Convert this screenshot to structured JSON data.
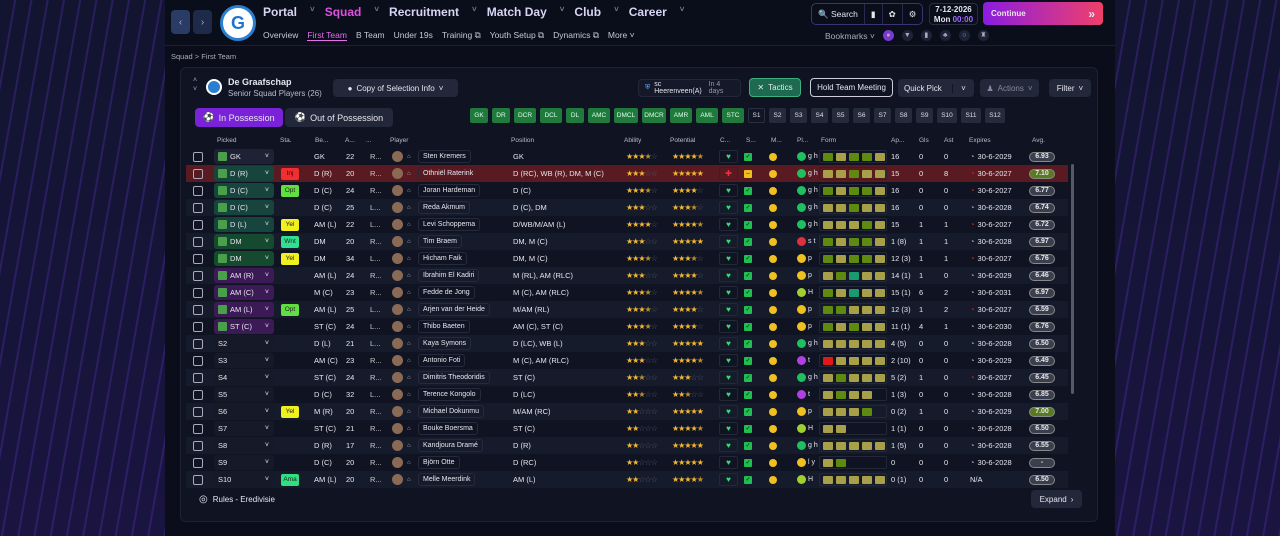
{
  "nav": {
    "main": [
      {
        "label": "Portal"
      },
      {
        "label": "Squad",
        "active": true
      },
      {
        "label": "Recruitment"
      },
      {
        "label": "Match Day"
      },
      {
        "label": "Club"
      },
      {
        "label": "Career"
      }
    ],
    "sub": [
      {
        "label": "Overview"
      },
      {
        "label": "First Team",
        "active": true
      },
      {
        "label": "B Team"
      },
      {
        "label": "Under 19s"
      },
      {
        "label": "Training ⧉"
      },
      {
        "label": "Youth Setup ⧉"
      },
      {
        "label": "Dynamics ⧉"
      },
      {
        "label": "More ˅"
      }
    ],
    "search": "Search",
    "date": "7-12-2026",
    "day": "Mon",
    "time": "00:00",
    "continue": "Continue",
    "bookmarks": "Bookmarks"
  },
  "breadcrumb": "Squad > First Team",
  "team": {
    "name": "De Graafschap",
    "subtitle": "Senior Squad Players (26)",
    "view": "Copy of Selection Info",
    "next_match": "sc Heerenveen(A)",
    "next_when": "In 4 days"
  },
  "toolbar": {
    "tactics": "Tactics",
    "meeting": "Hold Team Meeting",
    "quick_pick": "Quick Pick",
    "actions": "Actions",
    "filter": "Filter",
    "in_poss": "In Possession",
    "out_poss": "Out of Possession"
  },
  "positions": [
    "GK",
    "DR",
    "DCR",
    "DCL",
    "DL",
    "AMC",
    "DMCL",
    "DMCR",
    "AMR",
    "AML",
    "STC"
  ],
  "subs": [
    "S1",
    "S2",
    "S3",
    "S4",
    "S5",
    "S6",
    "S7",
    "S8",
    "S9",
    "S10",
    "S11",
    "S12"
  ],
  "columns": {
    "picked": "Picked",
    "sta": "Sta.",
    "best": "Be...",
    "age": "A...",
    "foot": "...",
    "player": "Player",
    "position": "Position",
    "ability": "Ability",
    "potential": "Potential",
    "cond": "C...",
    "sharp": "S...",
    "morale": "M...",
    "pl": "Pl...",
    "form": "Form",
    "apps": "Ap...",
    "gls": "Gls",
    "ast": "Ast",
    "expires": "Expires",
    "avg": "Avg."
  },
  "colors": {
    "green": "#5e8a10",
    "yellow": "#a8a048",
    "teal": "#1a9a70",
    "red": "#e01818"
  },
  "players": [
    {
      "picked": "GK",
      "grp": "gk",
      "sta": "",
      "best": "GK",
      "age": "22",
      "foot": "R...",
      "name": "Sten Kremers",
      "pos": "GK",
      "ab": 3.5,
      "po": 4.5,
      "form": "gyggy",
      "pl": "g",
      "plt": "g h",
      "apps": "16",
      "gls": "0",
      "ast": "0",
      "exp": "30-6-2029",
      "expRed": false,
      "avg": "6.93"
    },
    {
      "picked": "D (R)",
      "grp": "def",
      "sta": "Inj",
      "best": "D (R)",
      "age": "20",
      "foot": "R...",
      "name": "Othniël Raterink",
      "pos": "D (RC), WB (R), DM, M (C)",
      "ab": 3,
      "po": 5,
      "form": "yygyy",
      "pl": "g",
      "plt": "g h",
      "apps": "15",
      "gls": "0",
      "ast": "8",
      "exp": "30-6-2027",
      "expRed": true,
      "avg": "7.10",
      "hi": true,
      "inj": true
    },
    {
      "picked": "D (C)",
      "grp": "def",
      "sta": "Opt",
      "best": "D (C)",
      "age": "24",
      "foot": "R...",
      "name": "Joran Hardeman",
      "pos": "D (C)",
      "ab": 3.5,
      "po": 4,
      "form": "gyggy",
      "pl": "g",
      "plt": "g h",
      "apps": "16",
      "gls": "0",
      "ast": "0",
      "exp": "30-6-2027",
      "expRed": true,
      "avg": "6.77"
    },
    {
      "picked": "D (C)",
      "grp": "def",
      "sta": "",
      "best": "D (C)",
      "age": "25",
      "foot": "L...",
      "name": "Reda Akmum",
      "pos": "D (C), DM",
      "ab": 3,
      "po": 3.5,
      "form": "yygyy",
      "pl": "g",
      "plt": "g h",
      "apps": "16",
      "gls": "0",
      "ast": "0",
      "exp": "30-6-2028",
      "expRed": false,
      "avg": "6.74"
    },
    {
      "picked": "D (L)",
      "grp": "def",
      "sta": "Yel",
      "best": "AM (L)",
      "age": "22",
      "foot": "L...",
      "name": "Levi Schoppema",
      "pos": "D/WB/M/AM (L)",
      "ab": 4,
      "po": 4.5,
      "form": "yyygy",
      "pl": "g",
      "plt": "g h",
      "apps": "15",
      "gls": "1",
      "ast": "1",
      "exp": "30-6-2027",
      "expRed": true,
      "avg": "6.72"
    },
    {
      "picked": "DM",
      "grp": "mid",
      "sta": "Wnt",
      "best": "DM",
      "age": "20",
      "foot": "R...",
      "name": "Tim Braem",
      "pos": "DM, M (C)",
      "ab": 3,
      "po": 5,
      "form": "gyggy",
      "pl": "r",
      "plt": "s t",
      "apps": "1 (8)",
      "gls": "1",
      "ast": "1",
      "exp": "30-6-2028",
      "expRed": false,
      "avg": "6.97"
    },
    {
      "picked": "DM",
      "grp": "mid",
      "sta": "Yel",
      "best": "DM",
      "age": "34",
      "foot": "L...",
      "name": "Hicham Faik",
      "pos": "DM, M (C)",
      "ab": 3.5,
      "po": 3.5,
      "form": "gyggy",
      "pl": "y",
      "plt": "p",
      "apps": "12 (3)",
      "gls": "1",
      "ast": "1",
      "exp": "30-6-2027",
      "expRed": true,
      "avg": "6.76"
    },
    {
      "picked": "AM (R)",
      "grp": "att",
      "sta": "",
      "best": "AM (L)",
      "age": "24",
      "foot": "R...",
      "name": "Ibrahim El Kadiri",
      "pos": "M (RL), AM (RLC)",
      "ab": 3,
      "po": 4,
      "form": "ygtyy",
      "pl": "y",
      "plt": "p",
      "apps": "14 (1)",
      "gls": "1",
      "ast": "0",
      "exp": "30-6-2029",
      "expRed": false,
      "avg": "6.46"
    },
    {
      "picked": "AM (C)",
      "grp": "att",
      "sta": "",
      "best": "M (C)",
      "age": "23",
      "foot": "R...",
      "name": "Fedde de Jong",
      "pos": "M (C), AM (RLC)",
      "ab": 3.5,
      "po": 4.5,
      "form": "gytyy",
      "pl": "l",
      "plt": "H",
      "apps": "15 (1)",
      "gls": "6",
      "ast": "2",
      "exp": "30-6-2031",
      "expRed": false,
      "avg": "6.97"
    },
    {
      "picked": "AM (L)",
      "grp": "att",
      "sta": "Opt",
      "best": "AM (L)",
      "age": "25",
      "foot": "L...",
      "name": "Arjen van der Heide",
      "pos": "M/AM (RL)",
      "ab": 3.5,
      "po": 4,
      "form": "ggyyy",
      "pl": "y",
      "plt": "p",
      "apps": "12 (3)",
      "gls": "1",
      "ast": "2",
      "exp": "30-6-2027",
      "expRed": true,
      "avg": "6.59"
    },
    {
      "picked": "ST (C)",
      "grp": "att",
      "sta": "",
      "best": "ST (C)",
      "age": "24",
      "foot": "L...",
      "name": "Thibo Baeten",
      "pos": "AM (C), ST (C)",
      "ab": 3.5,
      "po": 4,
      "form": "gygyy",
      "pl": "y",
      "plt": "p",
      "apps": "11 (1)",
      "gls": "4",
      "ast": "1",
      "exp": "30-6-2030",
      "expRed": false,
      "avg": "6.76"
    },
    {
      "picked": "S2",
      "grp": "sub",
      "sta": "",
      "best": "D (L)",
      "age": "21",
      "foot": "L...",
      "name": "Kaya Symons",
      "pos": "D (LC), WB (L)",
      "ab": 3,
      "po": 5,
      "form": "yyyyy",
      "pl": "g",
      "plt": "g h",
      "apps": "4 (5)",
      "gls": "0",
      "ast": "0",
      "exp": "30-6-2028",
      "expRed": false,
      "avg": "6.50"
    },
    {
      "picked": "S3",
      "grp": "sub",
      "sta": "",
      "best": "AM (C)",
      "age": "23",
      "foot": "R...",
      "name": "Antonio Foti",
      "pos": "M (C), AM (RLC)",
      "ab": 3,
      "po": 4.5,
      "form": "ryyyy",
      "pl": "p",
      "plt": "t",
      "apps": "2 (10)",
      "gls": "0",
      "ast": "0",
      "exp": "30-6-2029",
      "expRed": false,
      "avg": "6.49"
    },
    {
      "picked": "S4",
      "grp": "sub",
      "sta": "",
      "best": "ST (C)",
      "age": "24",
      "foot": "R...",
      "name": "Dimitris Theodoridis",
      "pos": "ST (C)",
      "ab": 2.5,
      "po": 3,
      "form": "ygyyy",
      "pl": "g",
      "plt": "g h",
      "apps": "5 (2)",
      "gls": "1",
      "ast": "0",
      "exp": "30-6-2027",
      "expRed": true,
      "avg": "6.45"
    },
    {
      "picked": "S5",
      "grp": "sub",
      "sta": "",
      "best": "D (C)",
      "age": "32",
      "foot": "L...",
      "name": "Terence Kongolo",
      "pos": "D (LC)",
      "ab": 2.5,
      "po": 2.5,
      "form": "ygyy",
      "pl": "p",
      "plt": "t",
      "apps": "1 (3)",
      "gls": "0",
      "ast": "0",
      "exp": "30-6-2028",
      "expRed": false,
      "avg": "6.85"
    },
    {
      "picked": "S6",
      "grp": "sub",
      "sta": "Yel",
      "best": "M (R)",
      "age": "20",
      "foot": "R...",
      "name": "Michael Dokunmu",
      "pos": "M/AM (RC)",
      "ab": 2,
      "po": 5,
      "form": "yyyg",
      "pl": "y",
      "plt": "p",
      "apps": "0 (2)",
      "gls": "1",
      "ast": "0",
      "exp": "30-6-2029",
      "expRed": false,
      "avg": "7.00",
      "hi": true
    },
    {
      "picked": "S7",
      "grp": "sub",
      "sta": "",
      "best": "ST (C)",
      "age": "21",
      "foot": "R...",
      "name": "Bouke Boersma",
      "pos": "ST (C)",
      "ab": 2,
      "po": 4.5,
      "form": "yy",
      "pl": "l",
      "plt": "H",
      "apps": "1 (1)",
      "gls": "0",
      "ast": "0",
      "exp": "30-6-2028",
      "expRed": false,
      "avg": "6.50"
    },
    {
      "picked": "S8",
      "grp": "sub",
      "sta": "",
      "best": "D (R)",
      "age": "17",
      "foot": "R...",
      "name": "Kandjoura Dramé",
      "pos": "D (R)",
      "ab": 2,
      "po": 5,
      "form": "yyyyy",
      "pl": "g",
      "plt": "g h",
      "apps": "1 (5)",
      "gls": "0",
      "ast": "0",
      "exp": "30-6-2028",
      "expRed": false,
      "avg": "6.55"
    },
    {
      "picked": "S9",
      "grp": "sub",
      "sta": "",
      "best": "D (C)",
      "age": "20",
      "foot": "R...",
      "name": "Björn Otte",
      "pos": "D (RC)",
      "ab": 2,
      "po": 5,
      "form": "yg",
      "pl": "y",
      "plt": "l y",
      "apps": "0",
      "gls": "0",
      "ast": "0",
      "exp": "30-6-2028",
      "expRed": false,
      "avg": "-"
    },
    {
      "picked": "S10",
      "grp": "sub",
      "sta": "Ama",
      "best": "AM (L)",
      "age": "20",
      "foot": "R...",
      "name": "Melle Meerdink",
      "pos": "AM (L)",
      "ab": 2,
      "po": 4.5,
      "form": "yyyyy",
      "pl": "l",
      "plt": "H",
      "apps": "0 (1)",
      "gls": "0",
      "ast": "0",
      "exp": "N/A",
      "expRed": false,
      "avg": "6.50"
    }
  ],
  "footer": {
    "rules": "Rules - Eredivisie",
    "expand": "Expand"
  }
}
